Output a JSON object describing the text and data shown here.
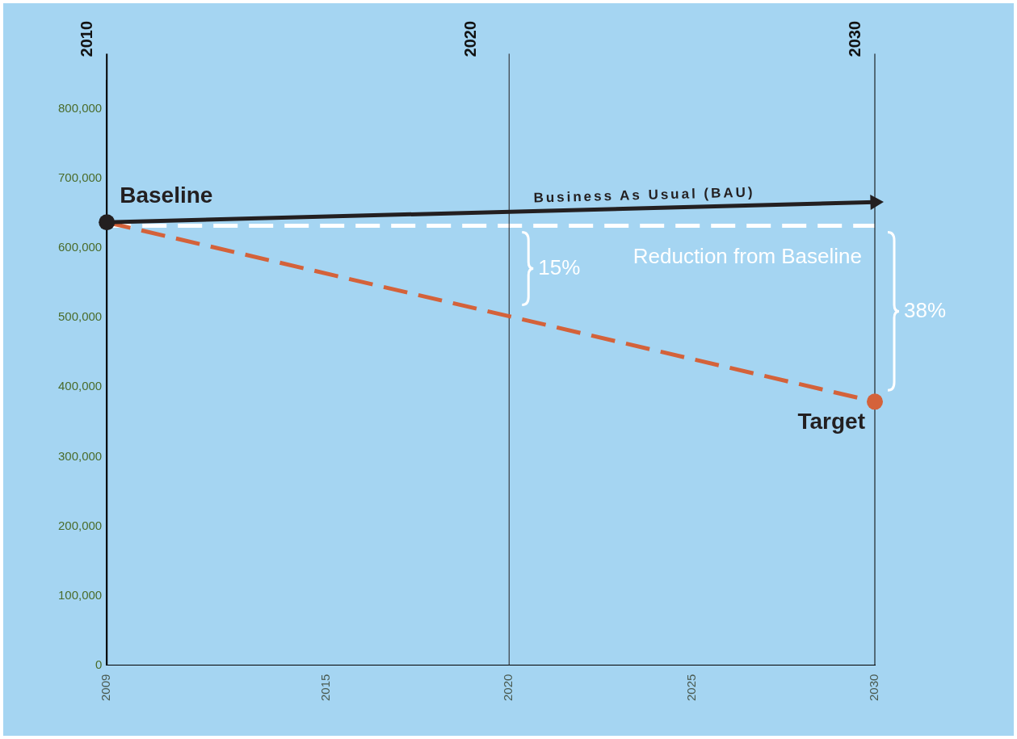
{
  "chart_data": {
    "type": "line",
    "x": [
      2009,
      2030
    ],
    "xlim": [
      2009,
      2030
    ],
    "xticks": [
      2009,
      2015,
      2020,
      2025,
      2030
    ],
    "x2lim": [
      2010,
      2030
    ],
    "x2ticks": [
      2010,
      2020,
      2030
    ],
    "ylim": [
      0,
      840000
    ],
    "yticks": [
      0,
      {
        "value": 100000,
        "label": "100,000"
      },
      {
        "value": 200000,
        "label": "200,000"
      },
      {
        "value": 300000,
        "label": "300,000"
      },
      {
        "value": 400000,
        "label": "400,000"
      },
      {
        "value": 500000,
        "label": "500,000"
      },
      {
        "value": 600000,
        "label": "600,000"
      },
      {
        "value": 700000,
        "label": "700,000"
      },
      {
        "value": 800000,
        "label": "800,000"
      }
    ],
    "series": [
      {
        "name": "Business As Usual (BAU)",
        "color": "#231f20",
        "values": [
          637000,
          666000
        ],
        "line_style": "solid"
      },
      {
        "color": "#d4623a",
        "values": [
          637000,
          379000
        ],
        "line_style": "dashed"
      },
      {
        "type": "scatter",
        "name": "Baseline",
        "color": "#231f20",
        "x": [
          2009
        ],
        "values": [
          637000
        ],
        "marker": "circle"
      },
      {
        "type": "scatter",
        "name": "Target",
        "color": "#d4623a",
        "x": [
          2030
        ],
        "values": [
          379000
        ],
        "marker": "circle"
      }
    ],
    "ref_lines": [
      {
        "axis": "y",
        "value": 632000,
        "label": "Reduction from Baseline",
        "color": "#ffffff",
        "line_style": "dashed"
      },
      {
        "axis": "x",
        "value": 2020,
        "color": "#231f20",
        "line_style": "solid"
      }
    ],
    "annotations": [
      "15%",
      "38%"
    ],
    "grid": false,
    "legend": false
  }
}
